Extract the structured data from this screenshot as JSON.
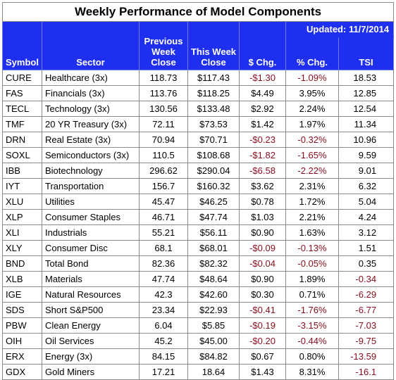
{
  "title": "Weekly Performance of Model Components",
  "updated": "Updated:  11/7/2014",
  "headers": {
    "symbol": "Symbol",
    "sector": "Sector",
    "prev_line1": "Previous",
    "prev_line2": "Week",
    "prev_line3": "Close",
    "this_line1": "This Week",
    "this_line2": "Close",
    "chg": "$ Chg.",
    "pct": "% Chg.",
    "tsi": "TSI"
  },
  "rows": [
    {
      "symbol": "CURE",
      "sector": "Healthcare  (3x)",
      "prev": "118.73",
      "close": "$117.43",
      "chg": "-$1.30",
      "pct": "-1.09%",
      "tsi": "18.53"
    },
    {
      "symbol": "FAS",
      "sector": "Financials  (3x)",
      "prev": "113.76",
      "close": "$118.25",
      "chg": "$4.49",
      "pct": "3.95%",
      "tsi": "12.85"
    },
    {
      "symbol": "TECL",
      "sector": "Technology  (3x)",
      "prev": "130.56",
      "close": "$133.48",
      "chg": "$2.92",
      "pct": "2.24%",
      "tsi": "12.54"
    },
    {
      "symbol": "TMF",
      "sector": "20 YR Treasury  (3x)",
      "prev": "72.11",
      "close": "$73.53",
      "chg": "$1.42",
      "pct": "1.97%",
      "tsi": "11.34"
    },
    {
      "symbol": "DRN",
      "sector": "Real Estate  (3x)",
      "prev": "70.94",
      "close": "$70.71",
      "chg": "-$0.23",
      "pct": "-0.32%",
      "tsi": "10.96"
    },
    {
      "symbol": "SOXL",
      "sector": "Semiconductors  (3x)",
      "prev": "110.5",
      "close": "$108.68",
      "chg": "-$1.82",
      "pct": "-1.65%",
      "tsi": "9.59"
    },
    {
      "symbol": "IBB",
      "sector": "Biotechnology",
      "prev": "296.62",
      "close": "$290.04",
      "chg": "-$6.58",
      "pct": "-2.22%",
      "tsi": "9.01"
    },
    {
      "symbol": "IYT",
      "sector": "Transportation",
      "prev": "156.7",
      "close": "$160.32",
      "chg": "$3.62",
      "pct": "2.31%",
      "tsi": "6.32"
    },
    {
      "symbol": "XLU",
      "sector": "Utilities",
      "prev": "45.47",
      "close": "$46.25",
      "chg": "$0.78",
      "pct": "1.72%",
      "tsi": "5.04"
    },
    {
      "symbol": "XLP",
      "sector": "Consumer Staples",
      "prev": "46.71",
      "close": "$47.74",
      "chg": "$1.03",
      "pct": "2.21%",
      "tsi": "4.24"
    },
    {
      "symbol": "XLI",
      "sector": "Industrials",
      "prev": "55.21",
      "close": "$56.11",
      "chg": "$0.90",
      "pct": "1.63%",
      "tsi": "3.12"
    },
    {
      "symbol": "XLY",
      "sector": "Consumer Disc",
      "prev": "68.1",
      "close": "$68.01",
      "chg": "-$0.09",
      "pct": "-0.13%",
      "tsi": "1.51"
    },
    {
      "symbol": "BND",
      "sector": "Total Bond",
      "prev": "82.36",
      "close": "$82.32",
      "chg": "-$0.04",
      "pct": "-0.05%",
      "tsi": "0.35"
    },
    {
      "symbol": "XLB",
      "sector": "Materials",
      "prev": "47.74",
      "close": "$48.64",
      "chg": "$0.90",
      "pct": "1.89%",
      "tsi": "-0.34"
    },
    {
      "symbol": "IGE",
      "sector": "Natural Resources",
      "prev": "42.3",
      "close": "$42.60",
      "chg": "$0.30",
      "pct": "0.71%",
      "tsi": "-6.29"
    },
    {
      "symbol": "SDS",
      "sector": "Short S&P500",
      "prev": "23.34",
      "close": "$22.93",
      "chg": "-$0.41",
      "pct": "-1.76%",
      "tsi": "-6.77"
    },
    {
      "symbol": "PBW",
      "sector": "Clean Energy",
      "prev": "6.04",
      "close": "$5.85",
      "chg": "-$0.19",
      "pct": "-3.15%",
      "tsi": "-7.03"
    },
    {
      "symbol": "OIH",
      "sector": "Oil Services",
      "prev": "45.2",
      "close": "$45.00",
      "chg": "-$0.20",
      "pct": "-0.44%",
      "tsi": "-9.75"
    },
    {
      "symbol": "ERX",
      "sector": "Energy  (3x)",
      "prev": "84.15",
      "close": "$84.82",
      "chg": "$0.67",
      "pct": "0.80%",
      "tsi": "-13.59"
    },
    {
      "symbol": "GDX",
      "sector": "Gold Miners",
      "prev": "17.21",
      "close": "18.64",
      "chg": "$1.43",
      "pct": "8.31%",
      "tsi": "-16.1"
    }
  ],
  "colors": {
    "header_bg": "#1f2ff0",
    "header_text": "#ffffff",
    "negative_text": "#8b0d1d"
  }
}
